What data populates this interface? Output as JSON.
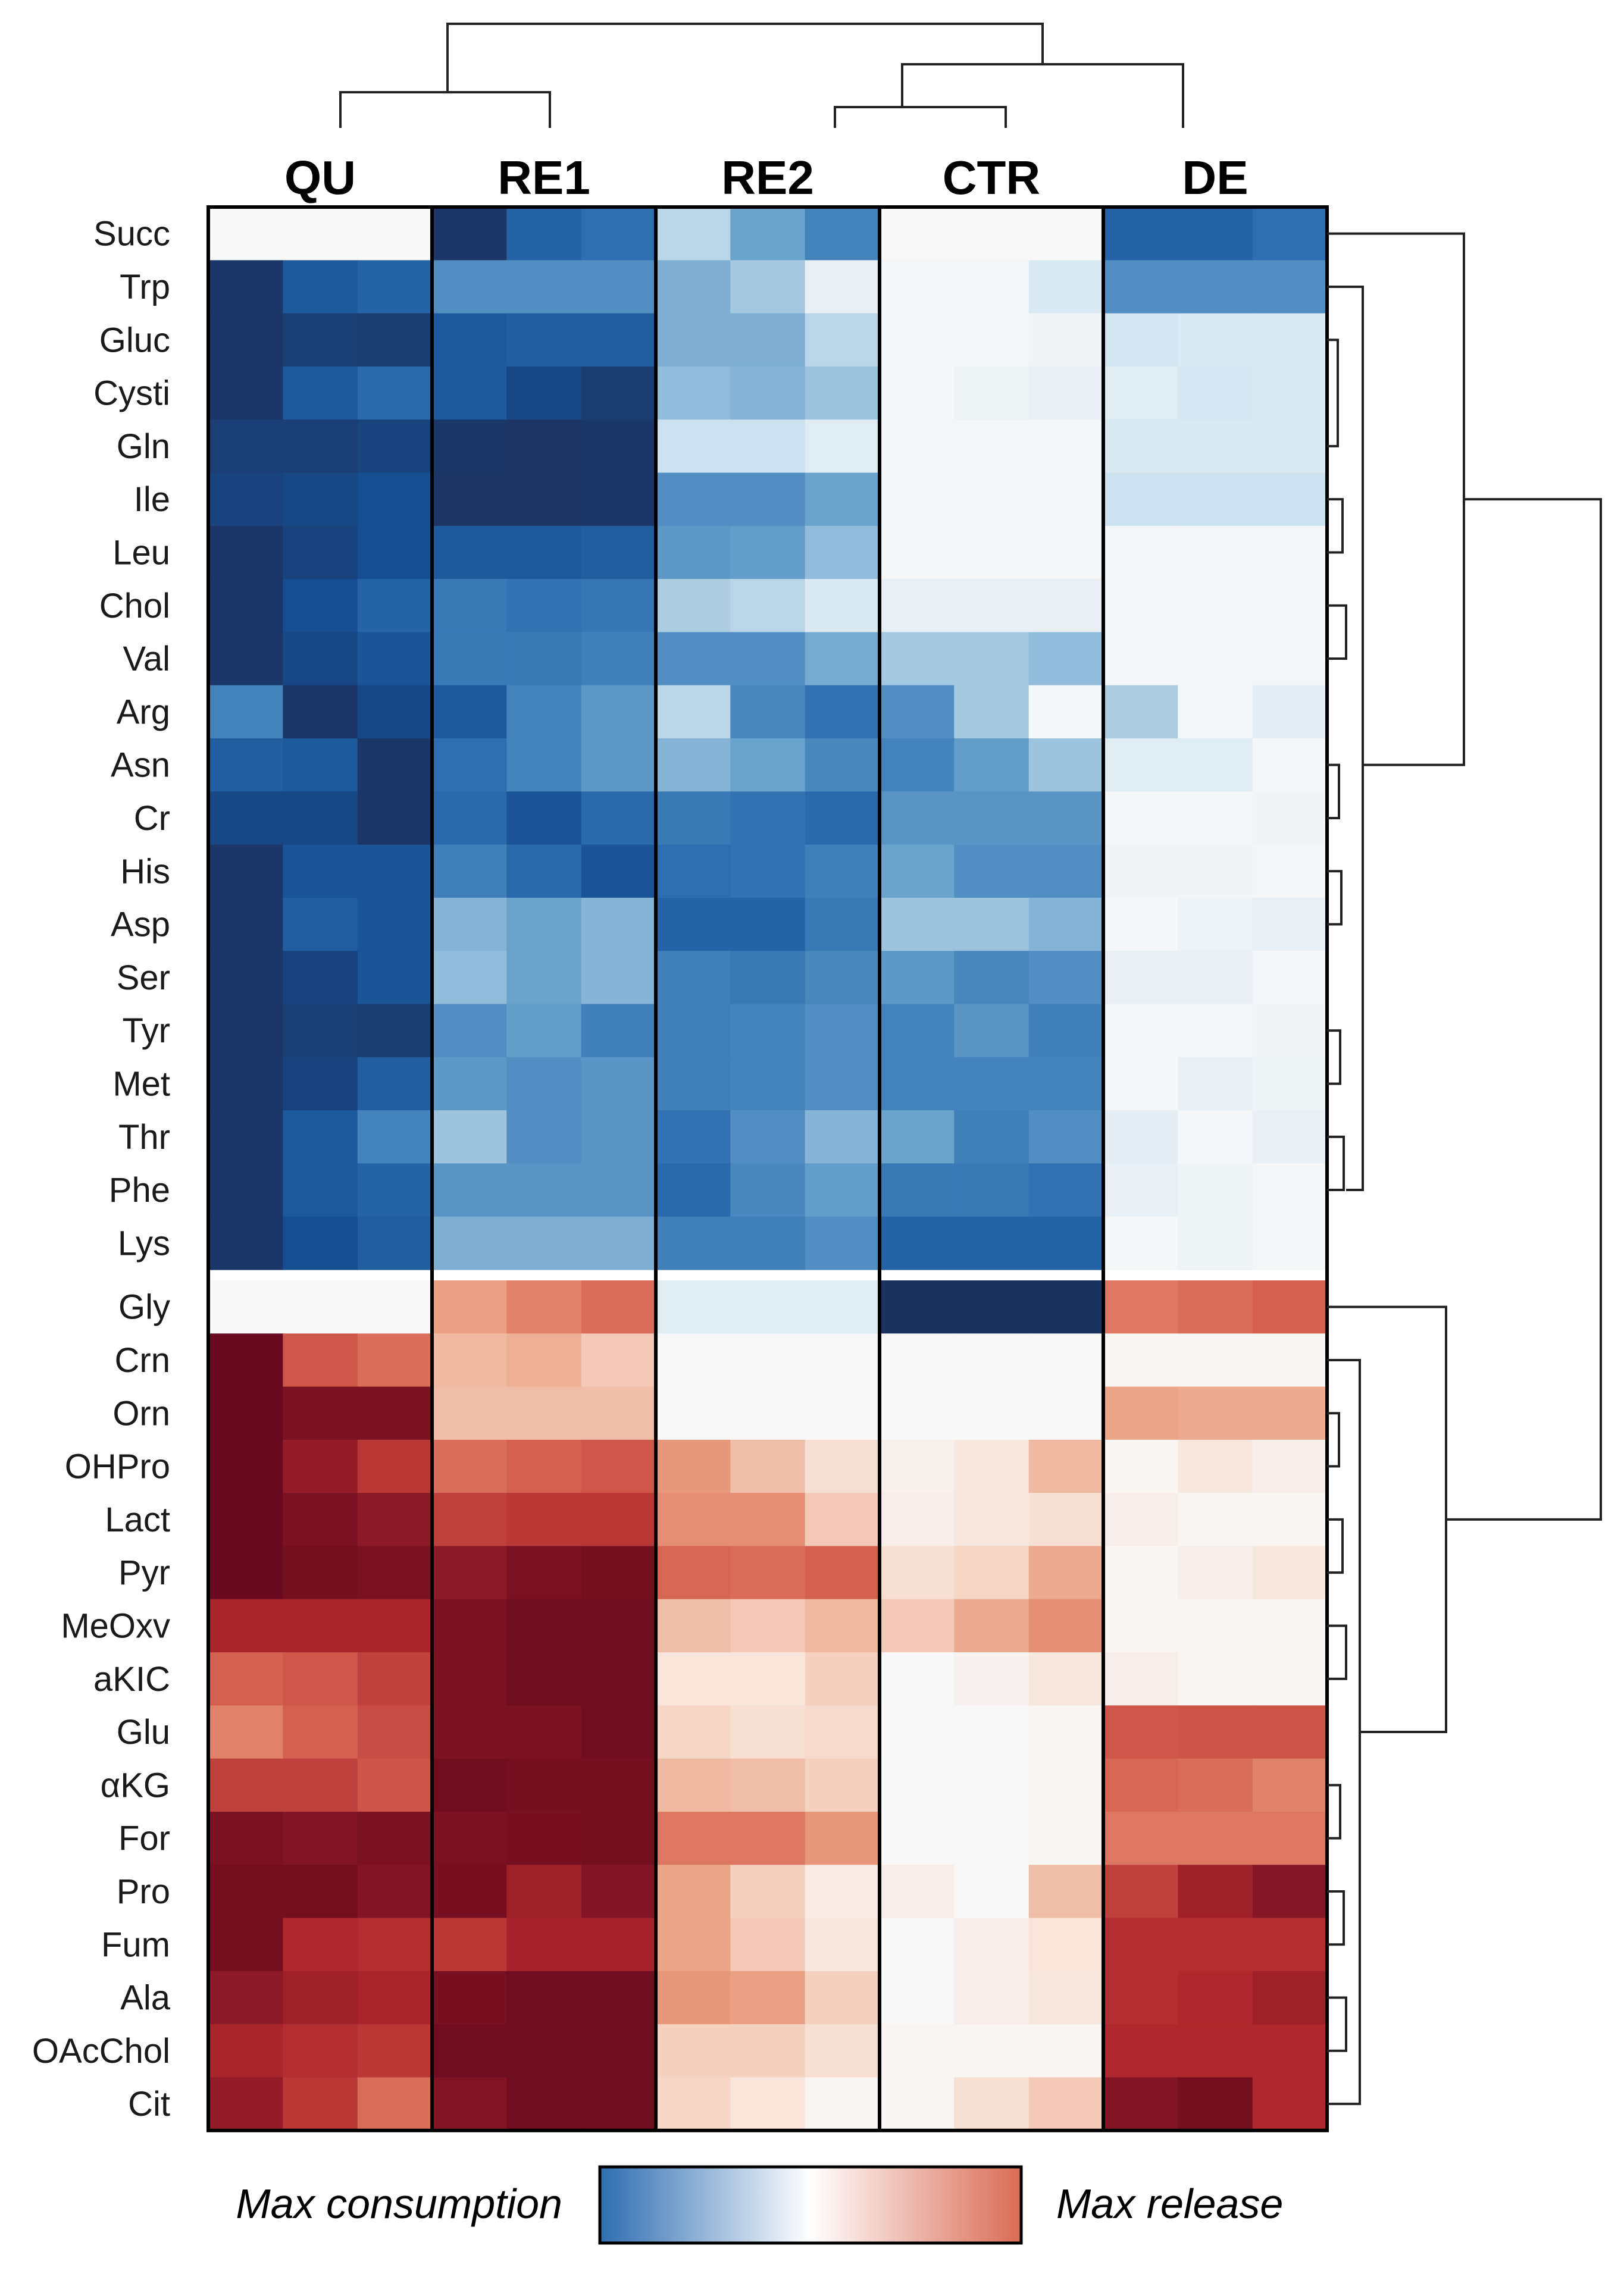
{
  "chart_data": {
    "type": "heatmap",
    "title": "",
    "column_groups": [
      "QU",
      "RE1",
      "RE2",
      "CTR",
      "DE"
    ],
    "replicates_per_group": 3,
    "rows": [
      "Succ",
      "Trp",
      "Gluc",
      "Cysti",
      "Gln",
      "Ile",
      "Leu",
      "Chol",
      "Val",
      "Arg",
      "Asn",
      "Cr",
      "His",
      "Asp",
      "Ser",
      "Tyr",
      "Met",
      "Thr",
      "Phe",
      "Lys",
      "Gly",
      "Crn",
      "Orn",
      "OHPro",
      "Lact",
      "Pyr",
      "MeOxv",
      "aKIC",
      "Glu",
      "αKG",
      "For",
      "Pro",
      "Fum",
      "Ala",
      "OAcChol",
      "Cit"
    ],
    "value_range": [
      -1,
      1
    ],
    "values": [
      [
        0,
        0,
        0,
        -0.95,
        -0.75,
        -0.7,
        -0.25,
        -0.45,
        -0.6,
        0,
        0,
        0,
        -0.75,
        -0.75,
        -0.7
      ],
      [
        -0.95,
        -0.8,
        -0.75,
        -0.55,
        -0.55,
        -0.55,
        -0.4,
        -0.3,
        -0.08,
        -0.02,
        -0.02,
        -0.15,
        -0.55,
        -0.55,
        -0.55
      ],
      [
        -0.95,
        -0.92,
        -0.93,
        -0.8,
        -0.78,
        -0.78,
        -0.4,
        -0.4,
        -0.25,
        -0.02,
        -0.02,
        -0.03,
        -0.18,
        -0.15,
        -0.15
      ],
      [
        -0.95,
        -0.8,
        -0.72,
        -0.8,
        -0.88,
        -0.93,
        -0.35,
        -0.38,
        -0.32,
        -0.02,
        -0.05,
        -0.08,
        -0.12,
        -0.17,
        -0.15
      ],
      [
        -0.92,
        -0.92,
        -0.9,
        -0.95,
        -0.96,
        -0.95,
        -0.2,
        -0.2,
        -0.12,
        -0.02,
        -0.02,
        -0.02,
        -0.15,
        -0.15,
        -0.15
      ],
      [
        -0.9,
        -0.88,
        -0.85,
        -0.96,
        -0.96,
        -0.95,
        -0.55,
        -0.55,
        -0.45,
        -0.02,
        -0.02,
        -0.02,
        -0.2,
        -0.2,
        -0.2
      ],
      [
        -0.95,
        -0.9,
        -0.85,
        -0.8,
        -0.8,
        -0.78,
        -0.5,
        -0.48,
        -0.35,
        -0.02,
        -0.02,
        -0.02,
        -0.02,
        -0.02,
        -0.02
      ],
      [
        -0.95,
        -0.85,
        -0.75,
        -0.65,
        -0.68,
        -0.66,
        -0.28,
        -0.25,
        -0.15,
        -0.08,
        -0.08,
        -0.08,
        -0.02,
        -0.02,
        -0.02
      ],
      [
        -0.95,
        -0.88,
        -0.82,
        -0.65,
        -0.65,
        -0.62,
        -0.55,
        -0.55,
        -0.42,
        -0.3,
        -0.3,
        -0.35,
        -0.02,
        -0.02,
        -0.02
      ],
      [
        -0.6,
        -0.95,
        -0.88,
        -0.8,
        -0.6,
        -0.5,
        -0.25,
        -0.58,
        -0.68,
        -0.55,
        -0.3,
        -0.02,
        -0.28,
        -0.02,
        -0.1
      ],
      [
        -0.78,
        -0.8,
        -0.95,
        -0.7,
        -0.6,
        -0.5,
        -0.38,
        -0.45,
        -0.58,
        -0.6,
        -0.48,
        -0.32,
        -0.12,
        -0.12,
        -0.02
      ],
      [
        -0.88,
        -0.88,
        -0.95,
        -0.72,
        -0.82,
        -0.72,
        -0.65,
        -0.68,
        -0.72,
        -0.52,
        -0.52,
        -0.52,
        -0.02,
        -0.02,
        -0.03
      ],
      [
        -0.95,
        -0.82,
        -0.82,
        -0.62,
        -0.72,
        -0.82,
        -0.7,
        -0.68,
        -0.62,
        -0.45,
        -0.55,
        -0.55,
        -0.03,
        -0.03,
        -0.02
      ],
      [
        -0.95,
        -0.78,
        -0.82,
        -0.38,
        -0.45,
        -0.38,
        -0.75,
        -0.75,
        -0.65,
        -0.32,
        -0.32,
        -0.38,
        -0.02,
        -0.06,
        -0.08
      ],
      [
        -0.95,
        -0.9,
        -0.82,
        -0.35,
        -0.45,
        -0.38,
        -0.62,
        -0.65,
        -0.58,
        -0.5,
        -0.58,
        -0.55,
        -0.08,
        -0.08,
        -0.02
      ],
      [
        -0.95,
        -0.92,
        -0.93,
        -0.55,
        -0.48,
        -0.62,
        -0.62,
        -0.6,
        -0.55,
        -0.6,
        -0.52,
        -0.62,
        -0.02,
        -0.02,
        -0.03
      ],
      [
        -0.95,
        -0.9,
        -0.78,
        -0.5,
        -0.55,
        -0.52,
        -0.62,
        -0.6,
        -0.55,
        -0.6,
        -0.6,
        -0.6,
        -0.02,
        -0.08,
        -0.05
      ],
      [
        -0.95,
        -0.8,
        -0.6,
        -0.32,
        -0.55,
        -0.52,
        -0.68,
        -0.55,
        -0.38,
        -0.45,
        -0.62,
        -0.55,
        -0.1,
        -0.02,
        -0.08
      ],
      [
        -0.95,
        -0.8,
        -0.75,
        -0.52,
        -0.52,
        -0.52,
        -0.72,
        -0.58,
        -0.48,
        -0.65,
        -0.65,
        -0.68,
        -0.08,
        -0.05,
        -0.02
      ],
      [
        -0.95,
        -0.85,
        -0.78,
        -0.4,
        -0.4,
        -0.4,
        -0.62,
        -0.62,
        -0.55,
        -0.75,
        -0.75,
        -0.75,
        -0.02,
        -0.05,
        -0.02
      ],
      [
        0,
        0,
        0,
        0.42,
        0.52,
        0.58,
        -0.12,
        -0.12,
        -0.12,
        -0.97,
        -0.97,
        -0.97,
        0.55,
        0.58,
        0.62
      ],
      [
        1,
        0.65,
        0.58,
        0.32,
        0.36,
        0.25,
        0,
        0,
        0,
        0,
        0,
        0,
        0.02,
        0.02,
        0.02
      ],
      [
        1,
        0.95,
        0.95,
        0.3,
        0.3,
        0.3,
        0,
        0,
        0,
        0,
        0,
        0,
        0.4,
        0.38,
        0.38
      ],
      [
        1,
        0.88,
        0.75,
        0.58,
        0.62,
        0.65,
        0.45,
        0.3,
        0.15,
        0.05,
        0.1,
        0.32,
        0.02,
        0.1,
        0.06
      ],
      [
        1,
        0.95,
        0.9,
        0.72,
        0.75,
        0.75,
        0.48,
        0.48,
        0.25,
        0.06,
        0.1,
        0.15,
        0.06,
        0.02,
        0.02
      ],
      [
        1,
        0.97,
        0.95,
        0.9,
        0.95,
        0.97,
        0.6,
        0.58,
        0.62,
        0.15,
        0.2,
        0.38,
        0.02,
        0.06,
        0.1
      ],
      [
        0.82,
        0.82,
        0.82,
        0.95,
        0.98,
        0.98,
        0.3,
        0.25,
        0.32,
        0.25,
        0.38,
        0.48,
        0.02,
        0.02,
        0.02
      ],
      [
        0.62,
        0.65,
        0.72,
        0.95,
        0.98,
        0.98,
        0.12,
        0.12,
        0.22,
        0,
        0.03,
        0.1,
        0.06,
        0.02,
        0.02
      ],
      [
        0.52,
        0.62,
        0.68,
        0.95,
        0.95,
        0.98,
        0.2,
        0.15,
        0.18,
        0,
        0,
        0.02,
        0.65,
        0.66,
        0.66
      ],
      [
        0.72,
        0.72,
        0.66,
        0.98,
        0.97,
        0.97,
        0.32,
        0.3,
        0.22,
        0,
        0,
        0.02,
        0.6,
        0.58,
        0.52
      ],
      [
        0.95,
        0.93,
        0.95,
        0.95,
        0.96,
        0.97,
        0.55,
        0.55,
        0.45,
        0,
        0,
        0.02,
        0.55,
        0.55,
        0.55
      ],
      [
        0.97,
        0.97,
        0.93,
        0.96,
        0.85,
        0.93,
        0.4,
        0.22,
        0.08,
        0.06,
        0,
        0.3,
        0.72,
        0.85,
        0.92
      ],
      [
        0.97,
        0.8,
        0.78,
        0.75,
        0.83,
        0.83,
        0.4,
        0.25,
        0.1,
        0,
        0.06,
        0.12,
        0.78,
        0.78,
        0.78
      ],
      [
        0.9,
        0.85,
        0.82,
        0.96,
        0.98,
        0.98,
        0.45,
        0.42,
        0.22,
        0,
        0.06,
        0.1,
        0.78,
        0.8,
        0.85
      ],
      [
        0.82,
        0.78,
        0.75,
        0.98,
        0.98,
        0.98,
        0.22,
        0.22,
        0.15,
        0.02,
        0.02,
        0.02,
        0.8,
        0.8,
        0.8
      ],
      [
        0.88,
        0.75,
        0.58,
        0.93,
        0.98,
        0.98,
        0.2,
        0.12,
        0.02,
        0.02,
        0.15,
        0.25,
        0.93,
        0.97,
        0.8
      ]
    ],
    "colorbar": {
      "low_label": "Max consumption",
      "high_label": "Max release",
      "colors": [
        "#2e6db0",
        "#ffffff",
        "#d96c55"
      ]
    },
    "dendrogram": {
      "columns": "top",
      "rows": "right"
    }
  }
}
